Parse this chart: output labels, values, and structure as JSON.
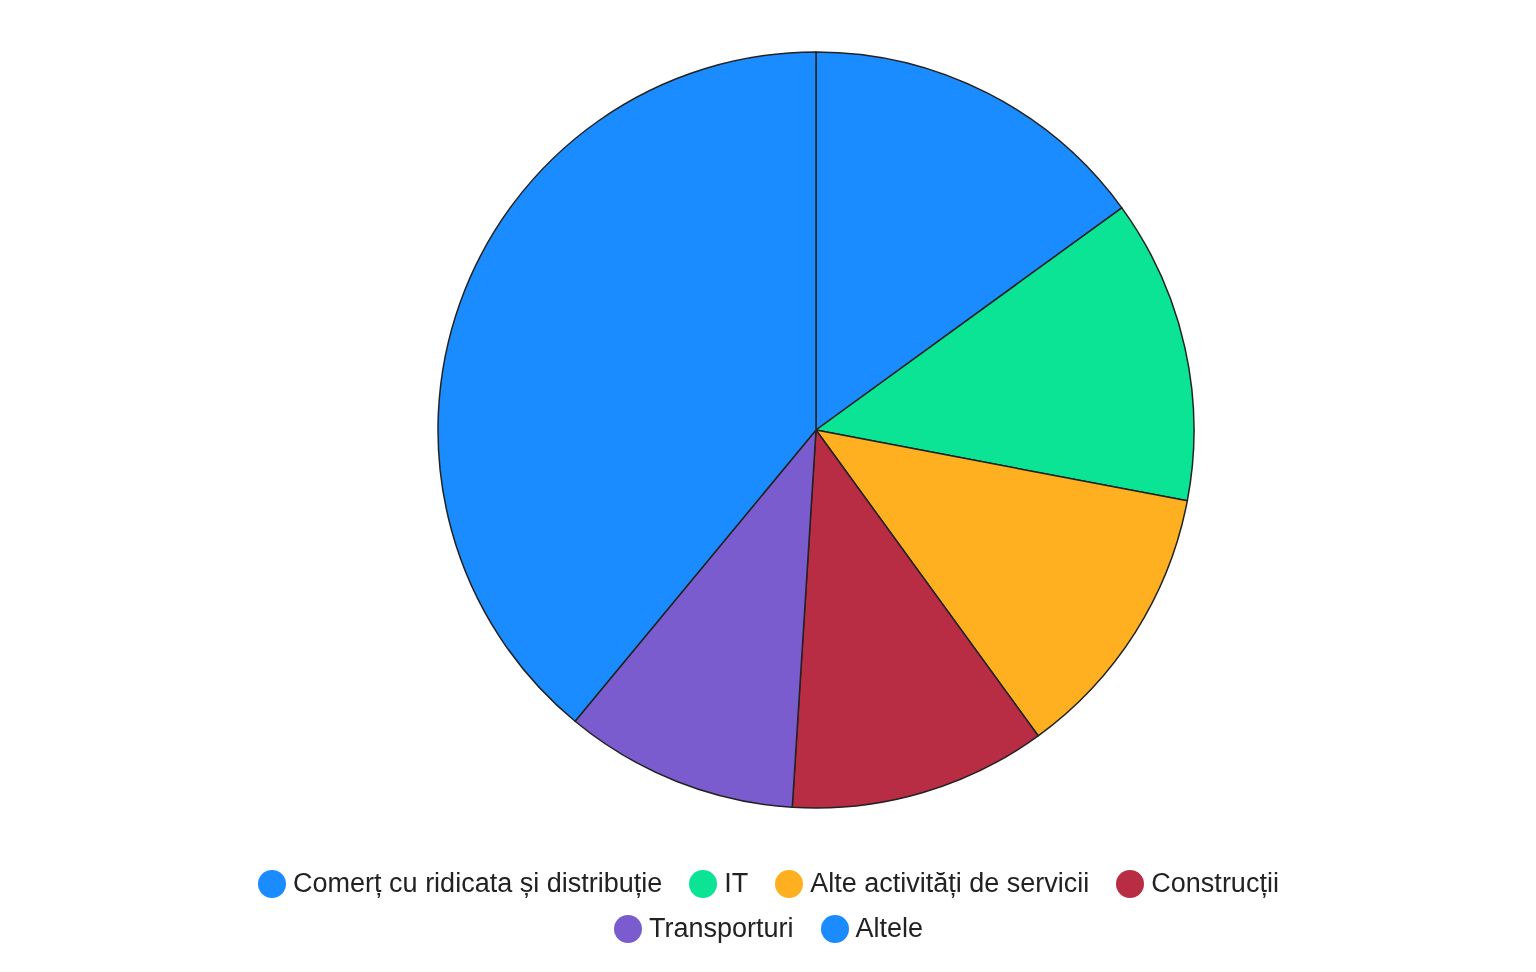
{
  "chart_data": {
    "type": "pie",
    "categories": [
      "Comerț cu ridicata și distribuție",
      "IT",
      "Alte activități de servicii",
      "Construcții",
      "Transporturi",
      "Altele"
    ],
    "values": [
      15,
      13,
      12,
      11,
      10,
      39
    ],
    "colors": [
      "#1a8cff",
      "#0ce495",
      "#ffb020",
      "#b82c44",
      "#7a5ccf",
      "#1a8cff"
    ],
    "legend": "bottom"
  }
}
